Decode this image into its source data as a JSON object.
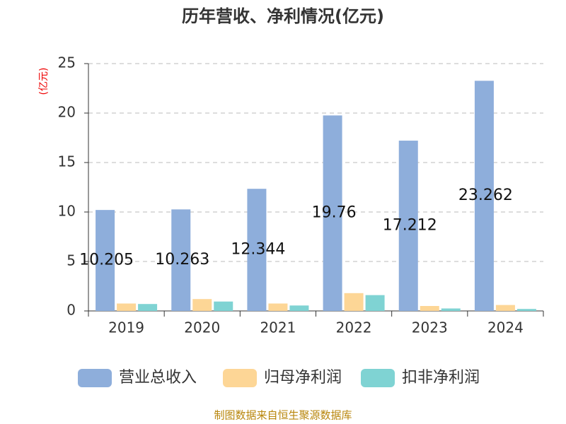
{
  "chart_data": {
    "type": "bar",
    "title": "历年营收、净利情况(亿元)",
    "y_label": "(亿元)",
    "source": "制图数据来自恒生聚源数据库",
    "categories": [
      "2019",
      "2020",
      "2021",
      "2022",
      "2023",
      "2024"
    ],
    "series": [
      {
        "name": "营业总收入",
        "color": "#8eaedb",
        "values": [
          10.205,
          10.263,
          12.344,
          19.76,
          17.212,
          23.262
        ],
        "value_labels": [
          "10.205",
          "10.263",
          "12.344",
          "19.76",
          "17.212",
          "23.262"
        ]
      },
      {
        "name": "归母净利润",
        "color": "#fdd696",
        "values": [
          0.75,
          1.2,
          0.75,
          1.8,
          0.5,
          0.6
        ]
      },
      {
        "name": "扣非净利润",
        "color": "#7fd3d3",
        "values": [
          0.7,
          0.95,
          0.55,
          1.6,
          0.25,
          0.2
        ]
      }
    ],
    "ylim": [
      0,
      25
    ],
    "yticks": [
      0,
      5,
      10,
      15,
      20,
      25
    ],
    "grid": true
  }
}
